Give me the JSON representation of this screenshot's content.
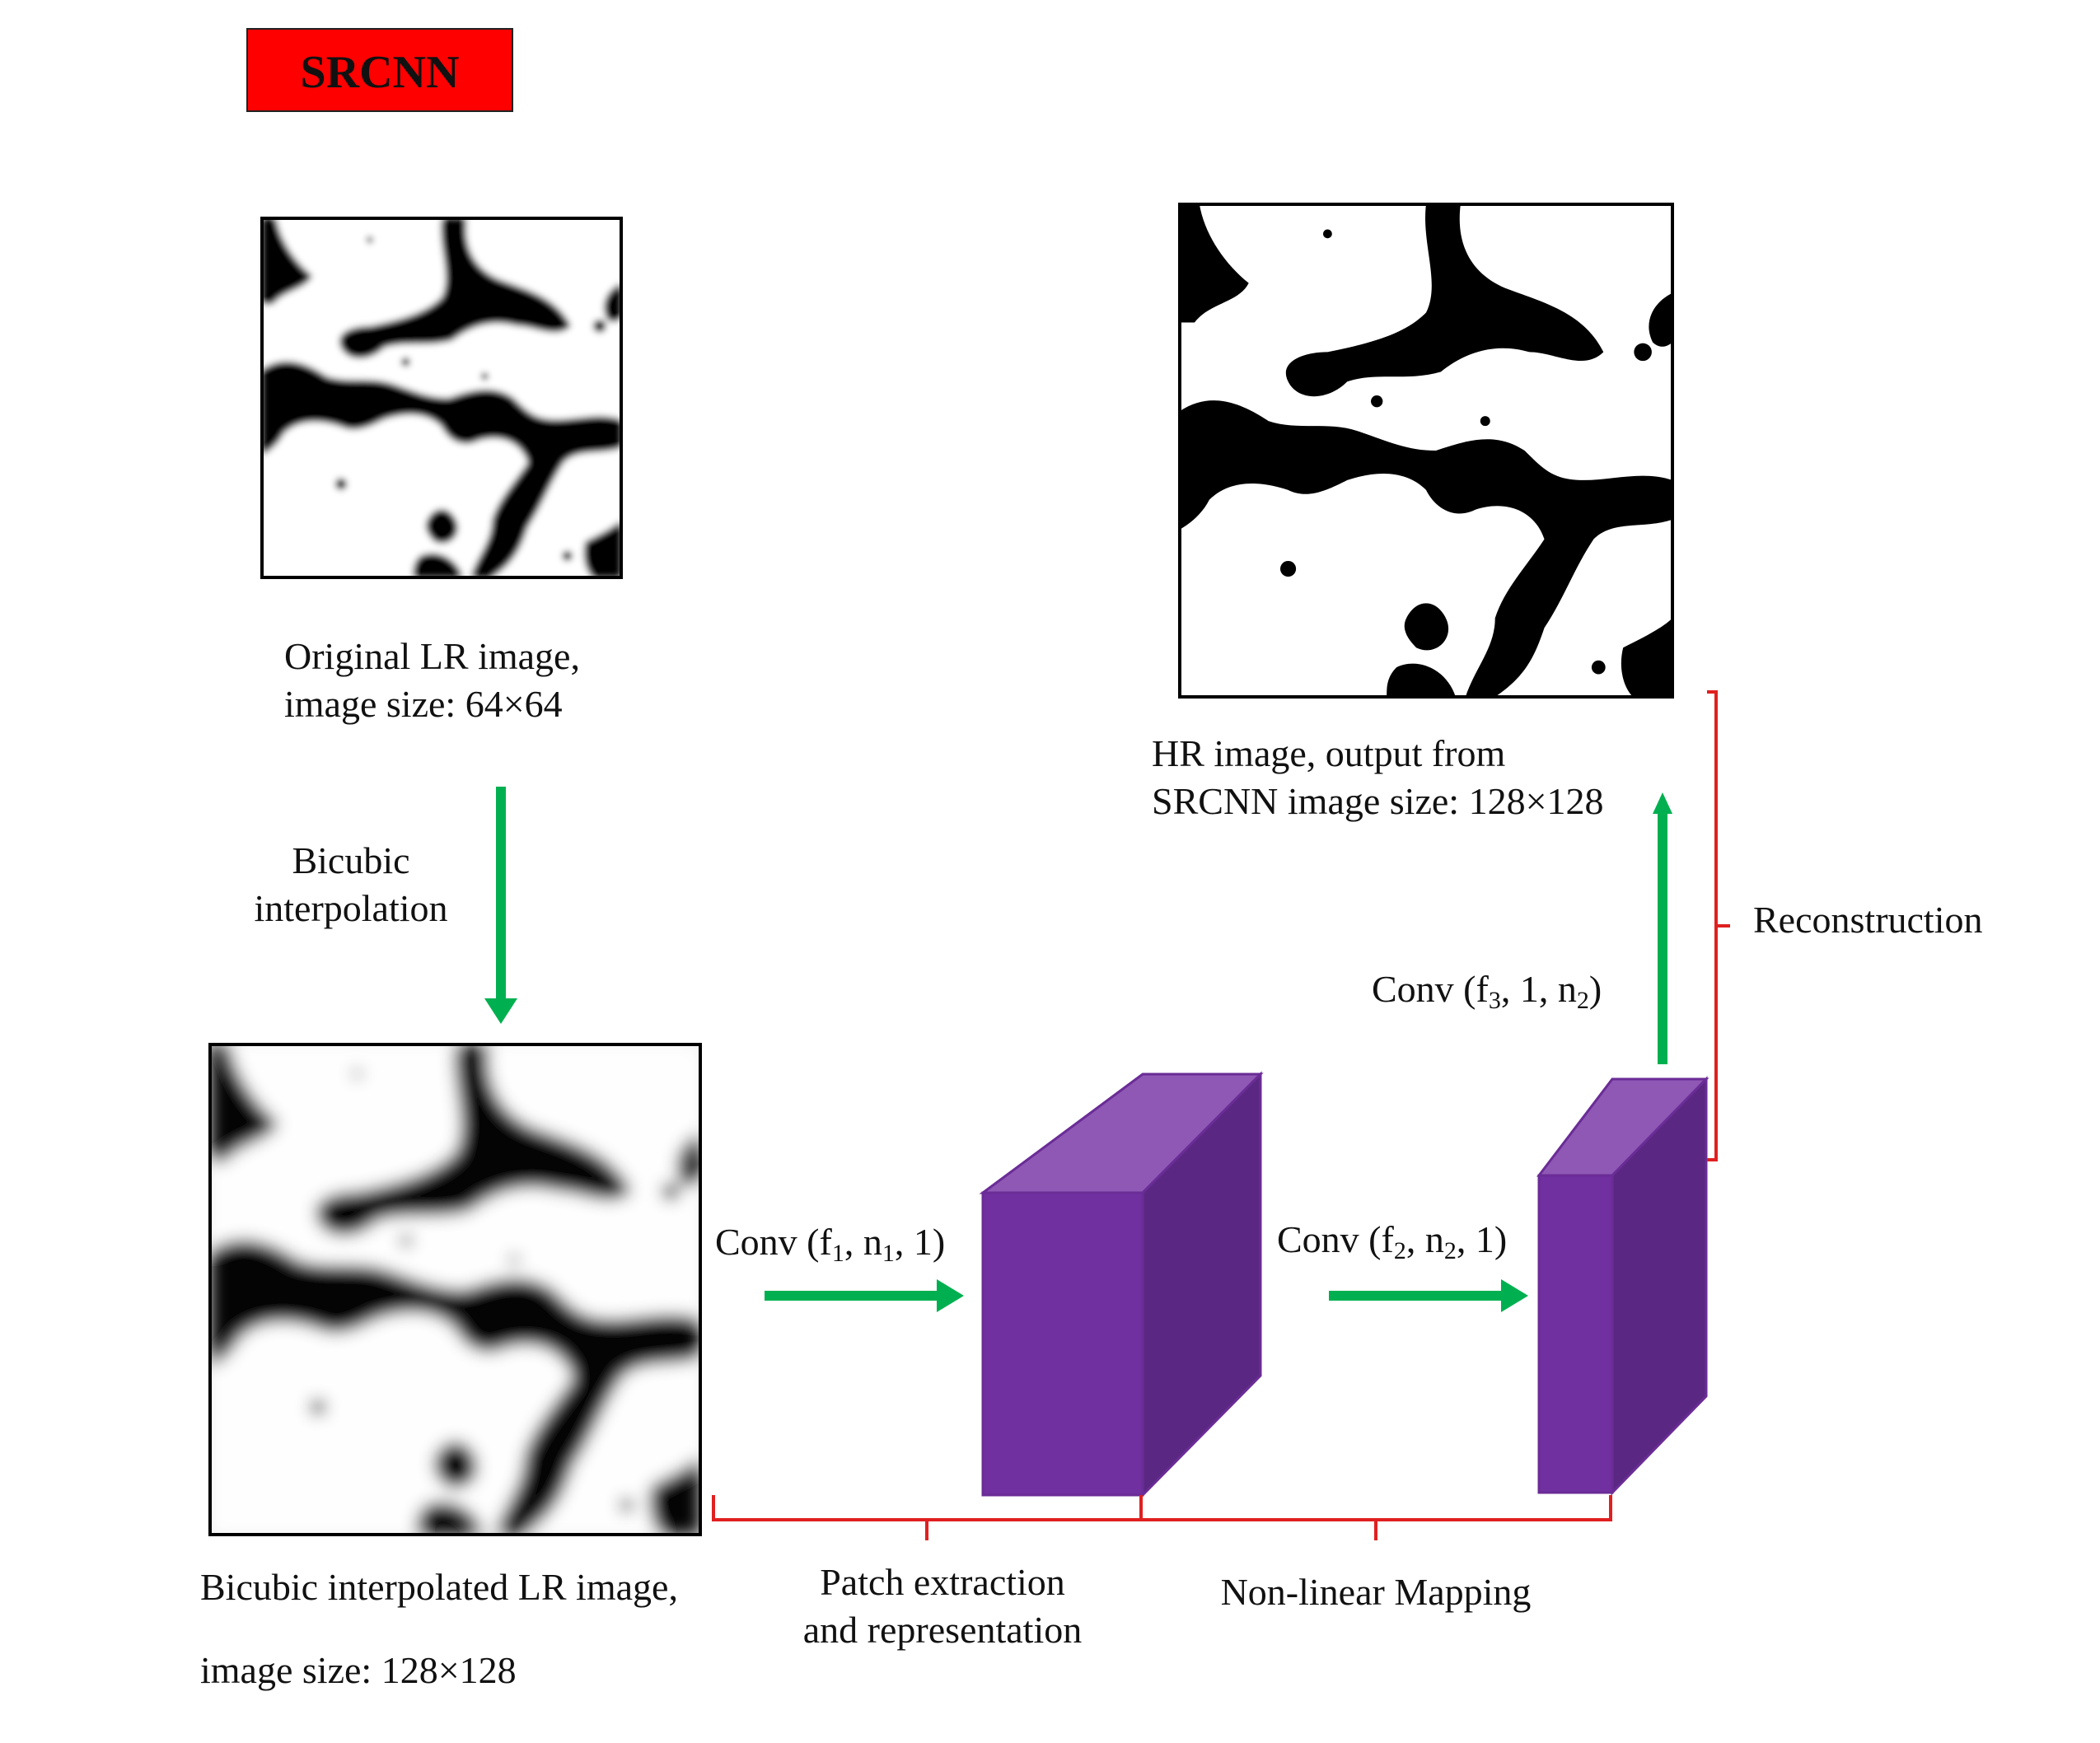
{
  "title_badge": {
    "text": "SRCNN"
  },
  "original_image": {
    "caption_line1": "Original LR image,",
    "caption_line2": "image size: 64×64"
  },
  "bicubic_step": {
    "line1": "Bicubic",
    "line2": "interpolation"
  },
  "interpolated_image": {
    "caption_line1": "Bicubic interpolated LR image,",
    "caption_line2": "image size: 128×128"
  },
  "hr_image": {
    "caption_line1": "HR image, output from",
    "caption_line2": "SRCNN image size: 128×128"
  },
  "conv1": {
    "base": "Conv (f",
    "sub1": "1",
    "mid1": ", n",
    "sub2": "1",
    "tail": ", 1)"
  },
  "conv2": {
    "base": "Conv (f",
    "sub1": "2",
    "mid1": ", n",
    "sub2": "2",
    "tail": ", 1)"
  },
  "conv3": {
    "base": "Conv (f",
    "sub1": "3",
    "mid1": ", 1, n",
    "sub2": "2",
    "tail": ")"
  },
  "stages": {
    "patch_line1": "Patch extraction",
    "patch_line2": "and representation",
    "mapping": "Non-linear Mapping",
    "reconstruction": "Reconstruction"
  },
  "colors": {
    "badge_red": "#ff0000",
    "arrow_green": "#00b050",
    "bracket_red": "#e02020",
    "cube_front": "#7030a0",
    "cube_top": "#8e58b4",
    "cube_side": "#5a2882"
  }
}
